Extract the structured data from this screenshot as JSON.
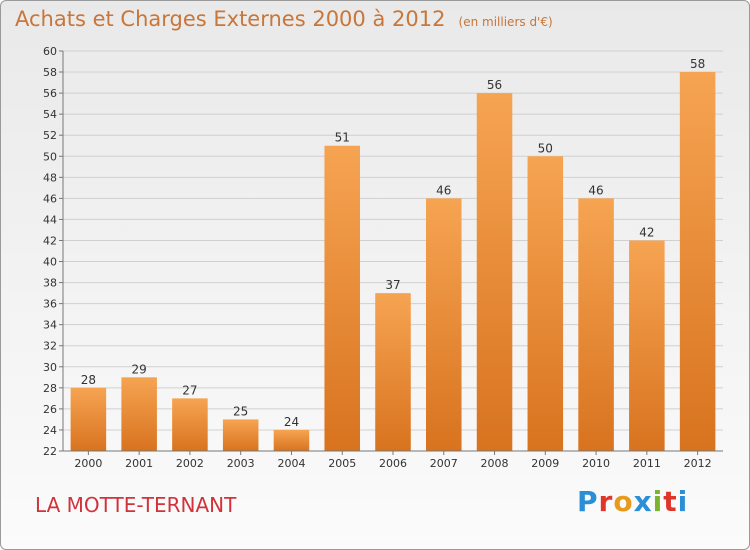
{
  "title": "Achats et Charges Externes 2000 à 2012",
  "unit": "(en milliers d'€)",
  "commune": "LA MOTTE-TERNANT",
  "brand": "Proxiti",
  "colors": {
    "title": "#c8763a",
    "bar_top": "#f6a452",
    "bar_bottom": "#d8731f",
    "commune": "#d2333b",
    "brand_letters": [
      "#2a8fd6",
      "#e0362a",
      "#e89a1c",
      "#2a8fd6",
      "#7ab32e",
      "#e0362a",
      "#2a8fd6"
    ]
  },
  "chart_data": {
    "type": "bar",
    "title": "Achats et Charges Externes 2000 à 2012",
    "xlabel": "",
    "ylabel": "",
    "categories": [
      "2000",
      "2001",
      "2002",
      "2003",
      "2004",
      "2005",
      "2006",
      "2007",
      "2008",
      "2009",
      "2010",
      "2011",
      "2012"
    ],
    "values": [
      28,
      29,
      27,
      25,
      24,
      51,
      37,
      46,
      56,
      50,
      46,
      42,
      58
    ],
    "ylim": [
      22,
      60
    ],
    "yticks": [
      22,
      24,
      26,
      28,
      30,
      32,
      34,
      36,
      38,
      40,
      42,
      44,
      46,
      48,
      50,
      52,
      54,
      56,
      58,
      60
    ],
    "grid": true,
    "data_labels": true
  }
}
